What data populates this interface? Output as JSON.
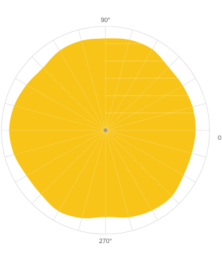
{
  "chart_data": {
    "type": "area",
    "coordinate_system": "polar",
    "angular_tick_labels": [
      {
        "angle_deg": 90,
        "label": "90°"
      },
      {
        "angle_deg": 270,
        "label": "270°"
      },
      {
        "angle_deg": 0,
        "label": "0"
      }
    ],
    "angular_unit": "degrees",
    "spoke_step_deg": 15,
    "radial_rings": [
      2,
      4,
      6,
      8,
      10,
      12
    ],
    "r_max": 12,
    "grid": true,
    "series": [
      {
        "fill_color": "#f7c417",
        "points": [
          {
            "theta": 0,
            "r": 10.4
          },
          {
            "theta": 15,
            "r": 10.4
          },
          {
            "theta": 30,
            "r": 10.3
          },
          {
            "theta": 45,
            "r": 10.3
          },
          {
            "theta": 60,
            "r": 10.8
          },
          {
            "theta": 75,
            "r": 10.8
          },
          {
            "theta": 90,
            "r": 10.6
          },
          {
            "theta": 105,
            "r": 10.7
          },
          {
            "theta": 120,
            "r": 10.6
          },
          {
            "theta": 135,
            "r": 10.2
          },
          {
            "theta": 150,
            "r": 10.5
          },
          {
            "theta": 165,
            "r": 10.9
          },
          {
            "theta": 180,
            "r": 11.1
          },
          {
            "theta": 195,
            "r": 10.9
          },
          {
            "theta": 210,
            "r": 10.5
          },
          {
            "theta": 225,
            "r": 10.5
          },
          {
            "theta": 240,
            "r": 10.8
          },
          {
            "theta": 255,
            "r": 10.5
          },
          {
            "theta": 270,
            "r": 10.0
          },
          {
            "theta": 285,
            "r": 10.4
          },
          {
            "theta": 300,
            "r": 10.7
          },
          {
            "theta": 315,
            "r": 10.8
          },
          {
            "theta": 330,
            "r": 10.4
          },
          {
            "theta": 345,
            "r": 10.3
          }
        ]
      }
    ]
  },
  "colors": {
    "grid": "#d9d9d9",
    "center_dot": "#9a9a9a",
    "label": "#555555"
  }
}
